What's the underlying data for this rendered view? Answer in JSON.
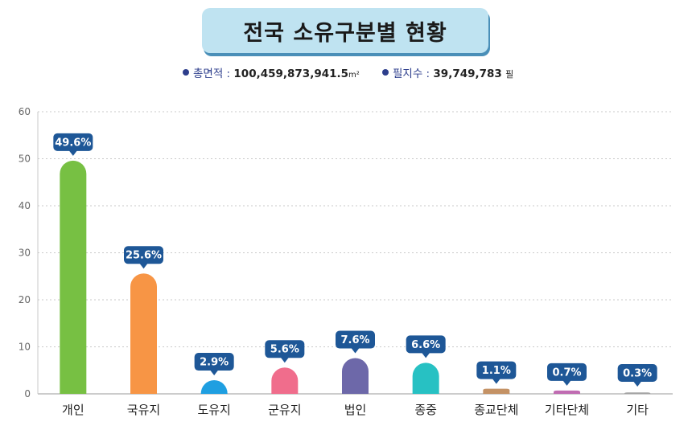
{
  "header": {
    "title": "전국 소유구분별 현황"
  },
  "stats": {
    "area_label": "총면적 :",
    "area_value": "100,459,873,941.5",
    "area_unit": "m²",
    "parcel_label": "필지수 :",
    "parcel_value": "39,749,783",
    "parcel_unit": "필"
  },
  "chart_data": {
    "type": "bar",
    "categories": [
      "개인",
      "국유지",
      "도유지",
      "군유지",
      "법인",
      "종중",
      "종교단체",
      "기타단체",
      "기타"
    ],
    "values": [
      49.6,
      25.6,
      2.9,
      5.6,
      7.6,
      6.6,
      1.1,
      0.7,
      0.3
    ],
    "data_labels": [
      "49.6%",
      "25.6%",
      "2.9%",
      "5.6%",
      "7.6%",
      "6.6%",
      "1.1%",
      "0.7%",
      "0.3%"
    ],
    "colors": [
      "#77c043",
      "#f79545",
      "#1f9fe1",
      "#f06d8c",
      "#6d68a9",
      "#27c1c3",
      "#c49265",
      "#c06cb2",
      "#a3a3a3"
    ],
    "label_color": "#1e5797",
    "yticks": [
      0,
      10,
      20,
      30,
      40,
      50,
      60
    ],
    "ylim": [
      0,
      60
    ],
    "grid": true,
    "title": "",
    "xlabel": "",
    "ylabel": ""
  }
}
